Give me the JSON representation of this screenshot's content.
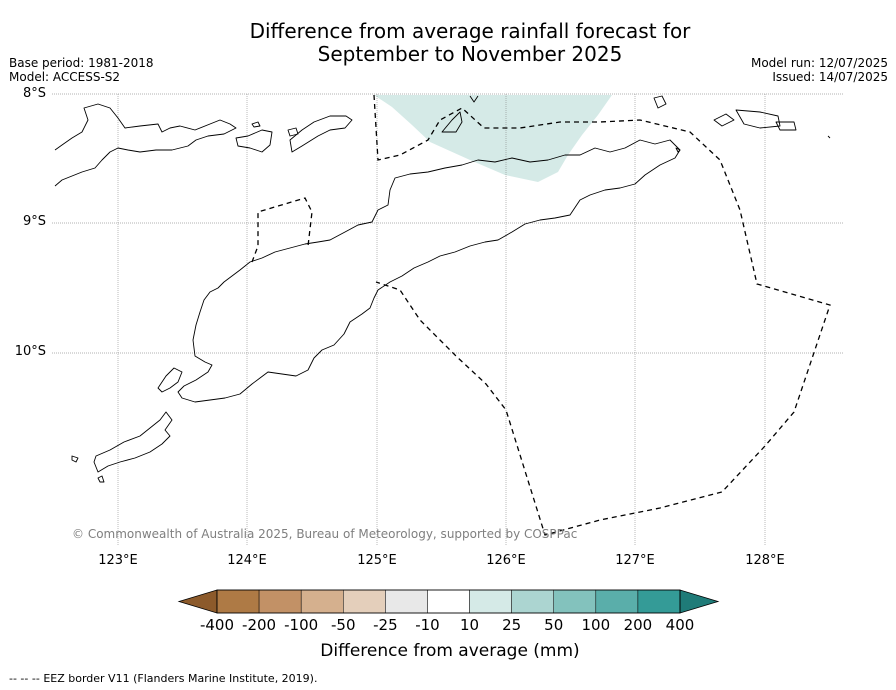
{
  "title_line1": "Difference from average rainfall forecast for",
  "title_line2": "September to November 2025",
  "base_period": "Base period: 1981-2018",
  "model": "Model: ACCESS-S2",
  "model_run": "Model run: 12/07/2025",
  "issued": "Issued: 14/07/2025",
  "lat_labels": [
    "8°S",
    "9°S",
    "10°S"
  ],
  "lon_labels": [
    "123°E",
    "124°E",
    "125°E",
    "126°E",
    "127°E",
    "128°E"
  ],
  "copyright": "© Commonwealth of Australia 2025, Bureau of Meteorology, supported by COSPPac",
  "colorbar": {
    "ticks": [
      "-400",
      "-200",
      "-100",
      "-50",
      "-25",
      "-10",
      "10",
      "25",
      "50",
      "100",
      "200",
      "400"
    ],
    "colors": [
      "#8c5a2b",
      "#ae7a45",
      "#c29166",
      "#d5b08e",
      "#e4cfbb",
      "#e8e8e8",
      "#ffffff",
      "#d5eae7",
      "#acd5d1",
      "#83c2bd",
      "#5aaeaa",
      "#349b97",
      "#1f7b78"
    ],
    "label": "Difference from average (mm)"
  },
  "legend_marker": "--  --  --",
  "footnote": "EEZ border V11 (Flanders Marine Institute, 2019)."
}
